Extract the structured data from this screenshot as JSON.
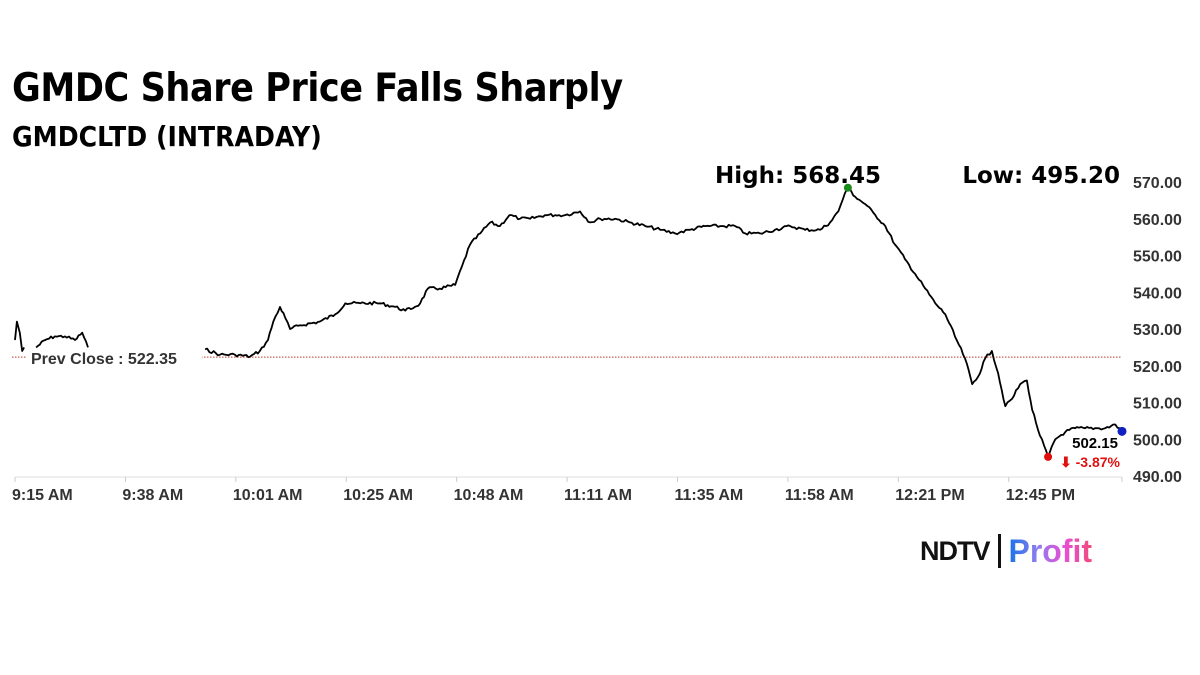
{
  "chart_data": {
    "type": "line",
    "title": "GMDC Share Price Falls Sharply",
    "subtitle": "GMDCLTD (INTRADAY)",
    "xlabel": "",
    "ylabel": "",
    "x_unit": "minutes since 9:15 AM",
    "xlim": [
      0,
      230.6
    ],
    "ylim": [
      490,
      570
    ],
    "x_ticks": [
      0,
      23,
      46,
      69,
      92,
      115,
      138,
      161,
      184,
      207
    ],
    "x_tick_labels": [
      "9:15 AM",
      "9:38 AM",
      "10:01 AM",
      "10:25 AM",
      "10:48 AM",
      "11:11 AM",
      "11:35 AM",
      "11:58 AM",
      "12:21 PM",
      "12:45 PM"
    ],
    "y_ticks": [
      570,
      560,
      550,
      540,
      530,
      520,
      510,
      500,
      490
    ],
    "y_tick_labels": [
      "570.00",
      "560.00",
      "550.00",
      "540.00",
      "530.00",
      "520.00",
      "510.00",
      "500.00",
      "490.00"
    ],
    "grid": false,
    "prev_close": {
      "label": "Prev Close : 522.35",
      "value": 522.35,
      "color": "#c0392b"
    },
    "high": {
      "label": "High: 568.45",
      "value": 568.45,
      "x": 173.5,
      "color": "#1a8a1a"
    },
    "low": {
      "label": "Low: 495.20",
      "value": 495.2,
      "x": 215.2,
      "color": "#e01010"
    },
    "last": {
      "value_label": "502.15",
      "change_label": "⬇ -3.87%",
      "value": 502.15,
      "x": 230.6,
      "color": "#1020c0",
      "change_color": "#e01010"
    },
    "series": [
      {
        "name": "GMDCLTD",
        "color": "#000000",
        "segments": [
          [
            [
              0,
              527
            ],
            [
              0.4,
              532
            ],
            [
              1,
              529
            ],
            [
              1.5,
              524
            ],
            [
              1.9,
              525
            ]
          ],
          [
            [
              4.4,
              525
            ],
            [
              6.3,
              527
            ],
            [
              8.3,
              528
            ],
            [
              10.4,
              528
            ],
            [
              12.5,
              527
            ],
            [
              14,
              529
            ],
            [
              15.2,
              525
            ]
          ],
          [
            [
              39.6,
              524.5
            ],
            [
              42.7,
              523
            ],
            [
              45.8,
              523
            ],
            [
              49,
              522.5
            ],
            [
              51,
              524
            ],
            [
              52.7,
              527
            ],
            [
              53.8,
              532
            ],
            [
              55.2,
              536
            ],
            [
              56.3,
              533
            ],
            [
              57.3,
              530
            ],
            [
              59.4,
              531
            ],
            [
              63.5,
              532
            ],
            [
              66.7,
              534
            ],
            [
              68.8,
              537
            ],
            [
              71.9,
              537
            ],
            [
              76,
              537
            ],
            [
              79.2,
              536
            ],
            [
              81.3,
              535
            ],
            [
              83.3,
              536
            ],
            [
              84.4,
              537
            ],
            [
              86,
              541
            ],
            [
              88.5,
              541
            ],
            [
              91.7,
              542
            ],
            [
              93.1,
              547
            ],
            [
              94.8,
              553
            ],
            [
              96.9,
              556
            ],
            [
              99,
              559
            ],
            [
              101,
              558
            ],
            [
              103,
              561
            ],
            [
              105.2,
              560
            ],
            [
              107.3,
              560
            ],
            [
              110.4,
              561
            ],
            [
              112.5,
              561
            ],
            [
              114.6,
              561
            ],
            [
              117.7,
              562
            ],
            [
              119.8,
              559
            ],
            [
              121.9,
              560
            ],
            [
              125,
              560
            ],
            [
              128.1,
              559
            ],
            [
              131.3,
              558
            ],
            [
              134.4,
              557
            ],
            [
              137.5,
              556
            ],
            [
              140.6,
              557
            ],
            [
              143.8,
              558
            ],
            [
              146.9,
              558
            ],
            [
              150,
              558
            ],
            [
              152.1,
              556
            ],
            [
              155.2,
              556
            ],
            [
              158.3,
              557
            ],
            [
              161.5,
              558
            ],
            [
              164.6,
              557
            ],
            [
              167.7,
              557
            ],
            [
              169.8,
              559
            ],
            [
              171.5,
              562
            ],
            [
              172.9,
              567
            ],
            [
              173.5,
              568.45
            ],
            [
              175,
              566
            ],
            [
              177.1,
              564
            ],
            [
              179.2,
              561
            ],
            [
              181.3,
              558
            ],
            [
              183.3,
              553
            ],
            [
              185.4,
              549
            ],
            [
              187.5,
              545
            ],
            [
              189.6,
              541
            ],
            [
              191.7,
              537
            ],
            [
              193.8,
              534
            ],
            [
              195.8,
              528
            ],
            [
              197.9,
              522
            ],
            [
              199.4,
              515
            ],
            [
              200.6,
              517
            ],
            [
              202.1,
              522
            ],
            [
              203.5,
              524
            ],
            [
              204.8,
              518
            ],
            [
              206.3,
              509
            ],
            [
              207.7,
              511
            ],
            [
              209.4,
              515
            ],
            [
              210.8,
              516
            ],
            [
              211.9,
              508
            ],
            [
              213.5,
              501
            ],
            [
              215.2,
              495.2
            ],
            [
              216.7,
              500
            ],
            [
              218.8,
              502
            ],
            [
              220.8,
              503
            ],
            [
              222.9,
              503
            ],
            [
              225,
              503
            ],
            [
              227.1,
              503
            ],
            [
              229.2,
              504
            ],
            [
              230.6,
              502.15
            ]
          ]
        ]
      }
    ]
  },
  "brand": {
    "ndtv": "NDTV",
    "profit": "Profit"
  }
}
